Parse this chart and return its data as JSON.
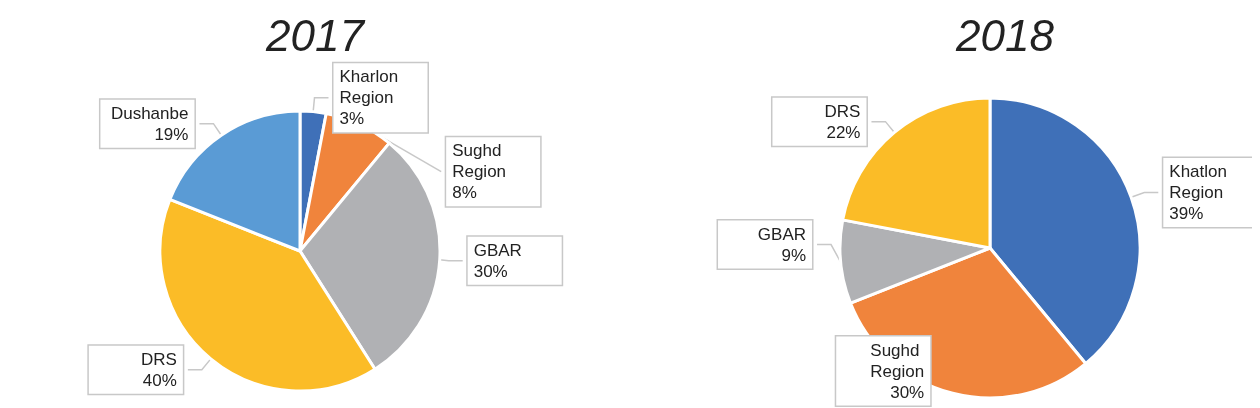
{
  "chart_data": [
    {
      "type": "pie",
      "title": "2017",
      "categories": [
        "Kharlon Region",
        "Sughd Region",
        "GBAR",
        "DRS",
        "Dushanbe"
      ],
      "values": [
        3,
        8,
        30,
        40,
        19
      ],
      "colors": [
        "#3f70b8",
        "#f0843c",
        "#b0b1b4",
        "#fbbc27",
        "#5a9bd5"
      ],
      "value_labels": [
        "3%",
        "8%",
        "30%",
        "40%",
        "19%"
      ],
      "legend": false
    },
    {
      "type": "pie",
      "title": "2018",
      "categories": [
        "Khatlon Region",
        "Sughd Region",
        "GBAR",
        "DRS"
      ],
      "values": [
        39,
        30,
        9,
        22
      ],
      "colors": [
        "#3f70b8",
        "#f0843c",
        "#b0b1b4",
        "#fbbc27"
      ],
      "value_labels": [
        "39%",
        "30%",
        "9%",
        "22%"
      ],
      "legend": false
    }
  ]
}
